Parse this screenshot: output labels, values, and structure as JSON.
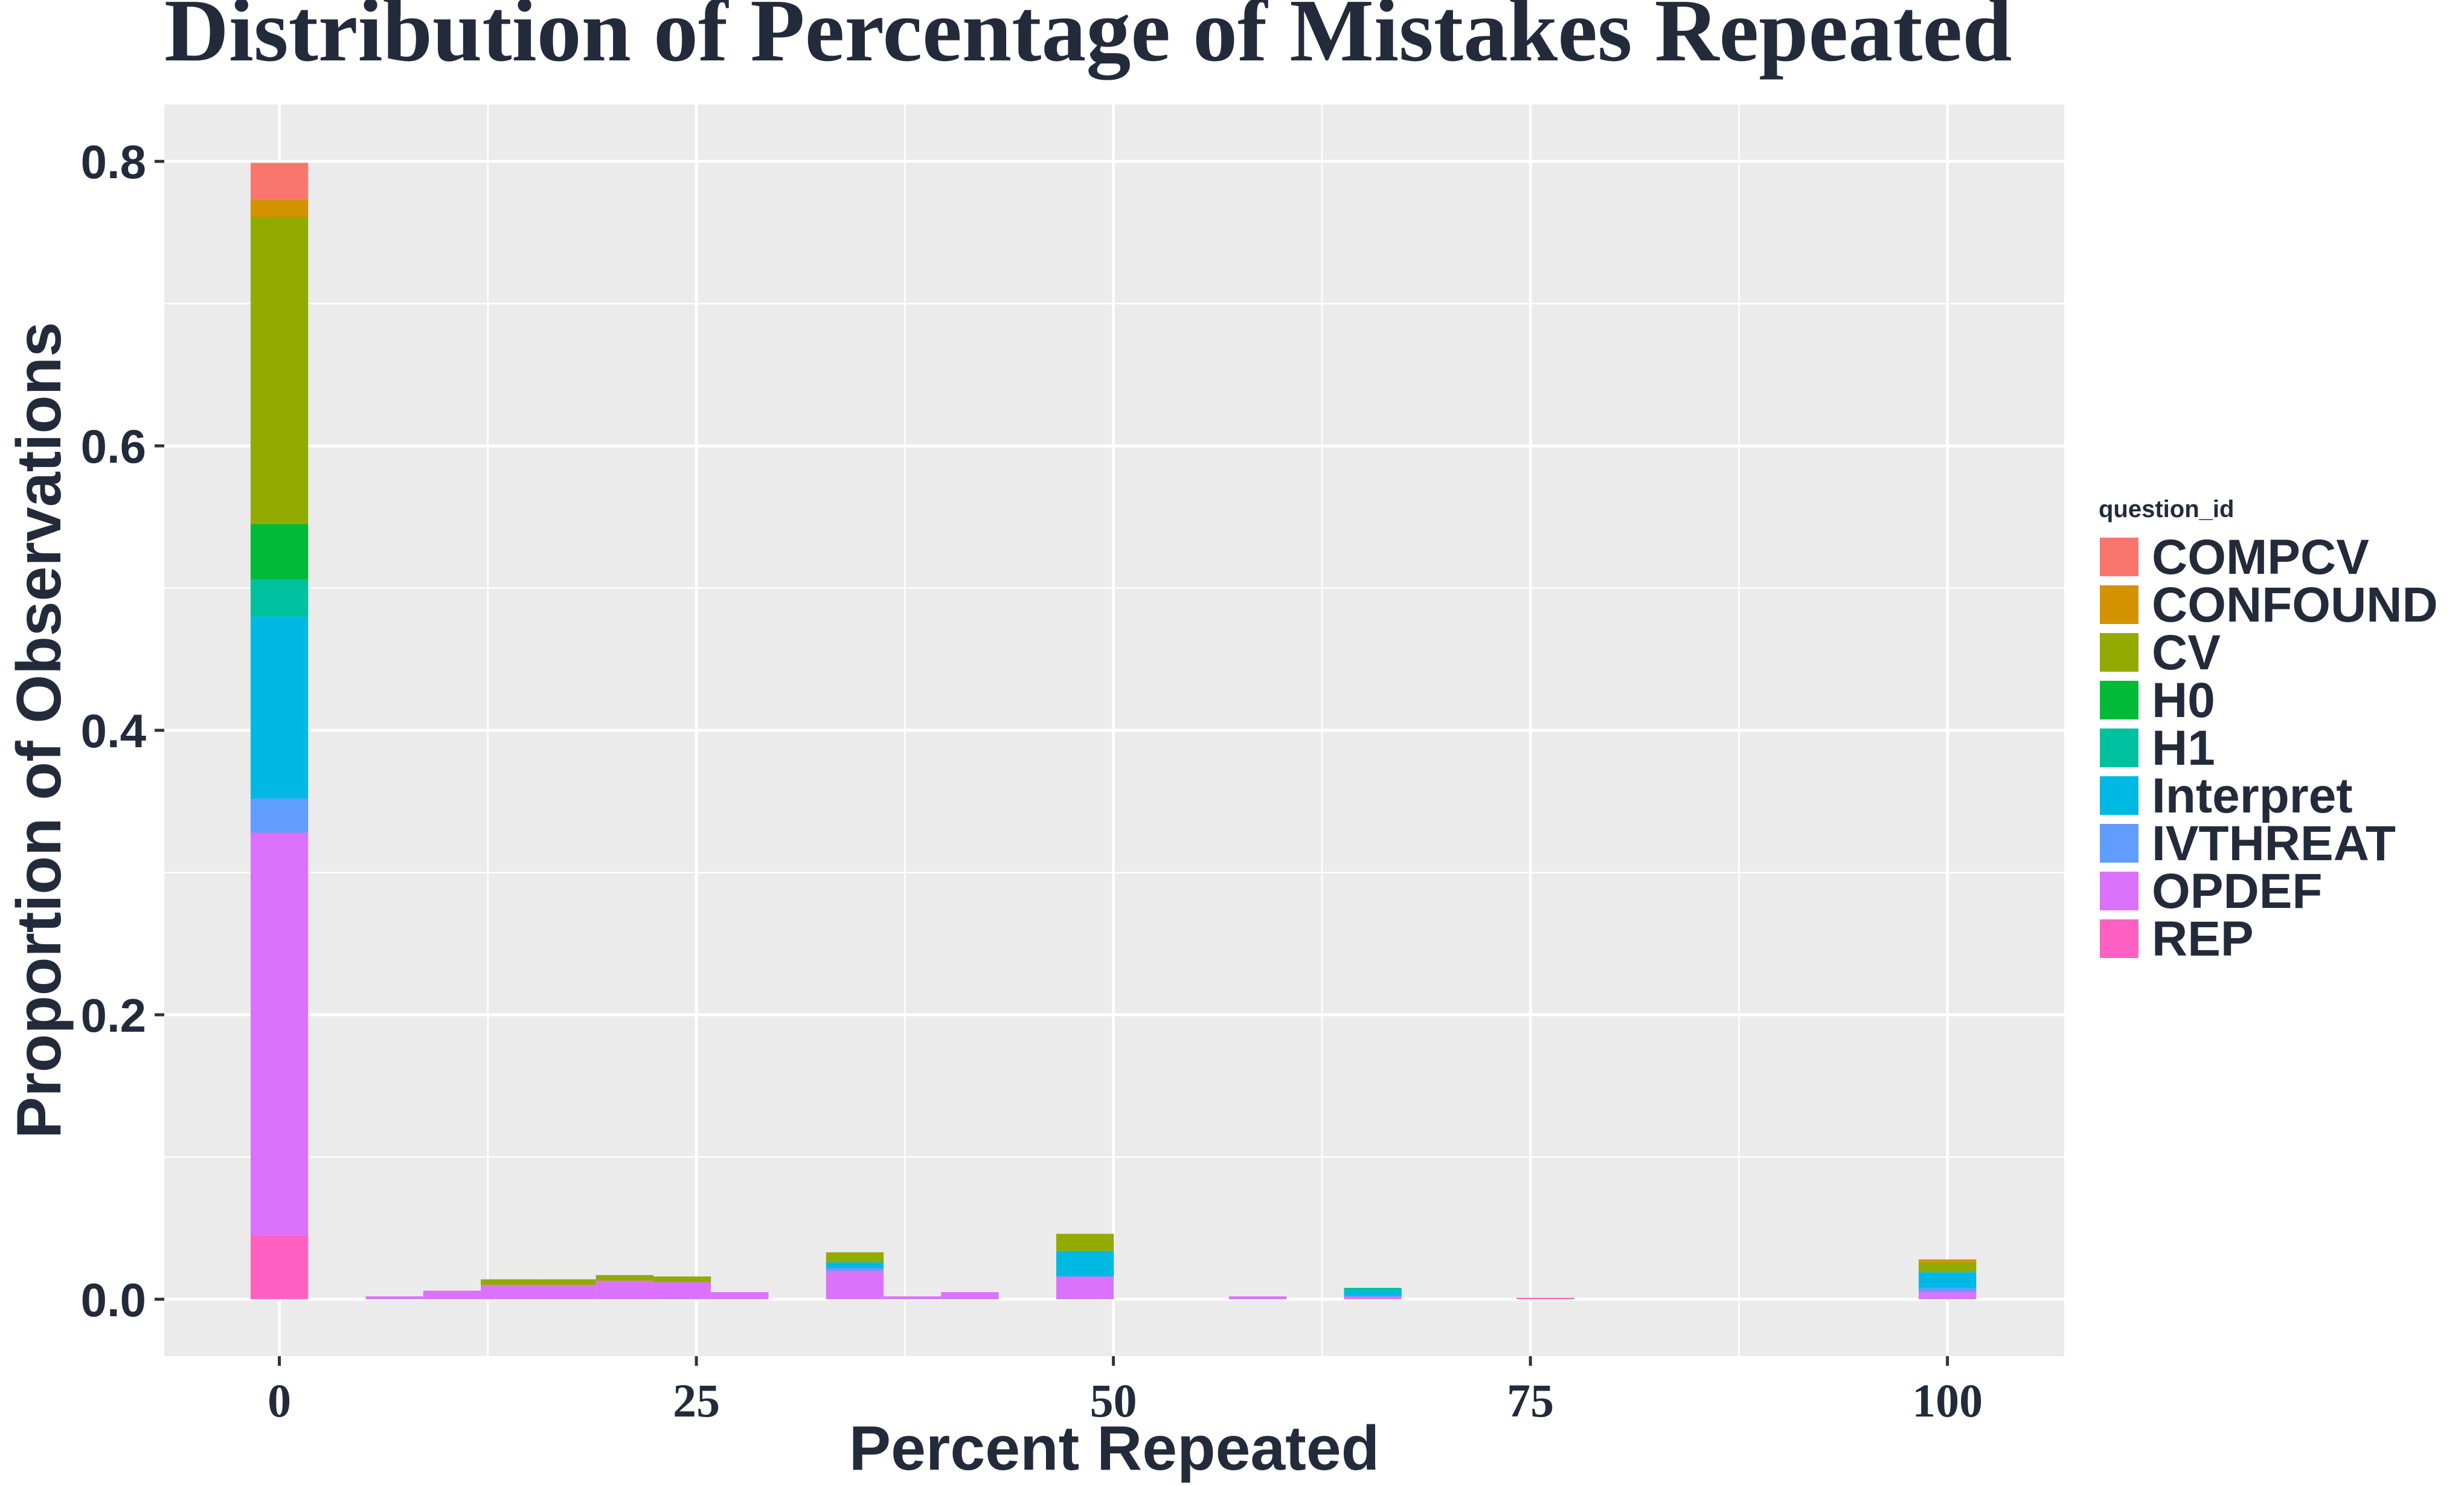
{
  "chart_data": {
    "type": "bar",
    "stacked": true,
    "title": "Distribution of Percentage of Mistakes Repeated",
    "xlabel": "Percent Repeated",
    "ylabel": "Proportion of Observations",
    "xlim": [
      -6.9,
      107
    ],
    "ylim": [
      -0.04,
      0.84
    ],
    "x_ticks": [
      0,
      25,
      50,
      75,
      100
    ],
    "x_tick_labels": [
      "0",
      "25",
      "50",
      "75",
      "100"
    ],
    "y_ticks": [
      0.0,
      0.2,
      0.4,
      0.6,
      0.8
    ],
    "y_tick_labels": [
      "0.0",
      "0.2",
      "0.4",
      "0.6",
      "0.8"
    ],
    "bin_width": 3.45,
    "grid": true,
    "background": "#ebebeb",
    "legend": {
      "title": "question_id",
      "position": "right"
    },
    "series": [
      {
        "name": "COMPCV",
        "color": "#F8766D",
        "values": [
          0.026,
          0,
          0,
          0,
          0,
          0,
          0,
          0,
          0,
          0,
          0,
          0,
          0,
          0,
          0,
          0,
          0,
          0,
          0
        ]
      },
      {
        "name": "CONFOUND",
        "color": "#D39200",
        "values": [
          0.012,
          0,
          0,
          0,
          0,
          0,
          0,
          0,
          0,
          0,
          0,
          0,
          0,
          0,
          0,
          0,
          0,
          0,
          0.002
        ]
      },
      {
        "name": "CV",
        "color": "#93AA00",
        "values": [
          0.216,
          0,
          0,
          0.004,
          0.004,
          0.004,
          0.004,
          0,
          0.007,
          0,
          0,
          0.012,
          0,
          0,
          0,
          0,
          0,
          0,
          0.007
        ]
      },
      {
        "name": "H0",
        "color": "#00BA38",
        "values": [
          0.039,
          0,
          0,
          0,
          0,
          0,
          0,
          0,
          0,
          0,
          0,
          0,
          0,
          0,
          0,
          0,
          0,
          0,
          0
        ]
      },
      {
        "name": "H1",
        "color": "#00C19F",
        "values": [
          0.026,
          0,
          0,
          0,
          0,
          0,
          0,
          0,
          0,
          0,
          0,
          0,
          0,
          0,
          0.002,
          0,
          0,
          0,
          0
        ]
      },
      {
        "name": "Interpret",
        "color": "#00B9E3",
        "values": [
          0.128,
          0,
          0,
          0,
          0,
          0,
          0,
          0,
          0.004,
          0,
          0,
          0.018,
          0,
          0,
          0.004,
          0,
          0,
          0,
          0.011
        ]
      },
      {
        "name": "IVTHREAT",
        "color": "#619CFF",
        "values": [
          0.024,
          0,
          0,
          0,
          0,
          0,
          0,
          0,
          0.002,
          0,
          0,
          0,
          0,
          0,
          0,
          0,
          0,
          0,
          0.003
        ]
      },
      {
        "name": "OPDEF",
        "color": "#DB72FB",
        "values": [
          0.283,
          0.002,
          0.006,
          0.01,
          0.01,
          0.013,
          0.012,
          0.005,
          0.02,
          0.002,
          0.005,
          0.016,
          0,
          0.002,
          0.002,
          0,
          0,
          0,
          0.005
        ]
      },
      {
        "name": "REP",
        "color": "#FF61C3",
        "values": [
          0.045,
          0,
          0,
          0,
          0,
          0,
          0,
          0,
          0,
          0,
          0,
          0,
          0,
          0,
          0,
          0.001,
          0,
          0,
          0
        ]
      }
    ],
    "x": [
      0,
      6.9,
      10.35,
      13.8,
      17.25,
      20.7,
      24.15,
      27.6,
      34.5,
      37.95,
      41.4,
      48.3,
      55.2,
      58.65,
      65.55,
      75.9,
      82.8,
      89.7,
      100
    ]
  }
}
